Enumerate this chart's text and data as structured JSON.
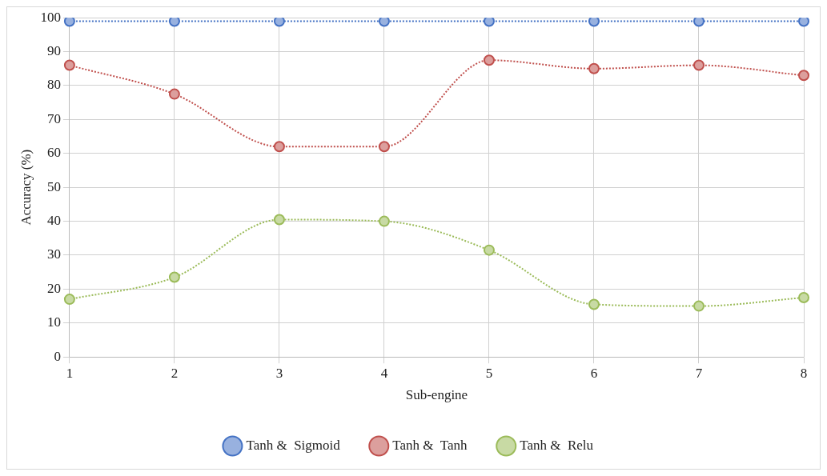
{
  "chart_data": {
    "type": "line",
    "xlabel": "Sub-engine",
    "ylabel": "Accuracy (%)",
    "categories": [
      "1",
      "2",
      "3",
      "4",
      "5",
      "6",
      "7",
      "8"
    ],
    "series": [
      {
        "name": "Tanh &  Sigmoid",
        "color": "#4472c4",
        "values": [
          99,
          99,
          99,
          99,
          99,
          99,
          99,
          99
        ]
      },
      {
        "name": "Tanh &  Tanh",
        "color": "#c0504d",
        "values": [
          86,
          77.5,
          62,
          62,
          87.5,
          85,
          86,
          83
        ]
      },
      {
        "name": "Tanh &  Relu",
        "color": "#9bbb59",
        "values": [
          17,
          23.5,
          40.5,
          40,
          31.5,
          15.5,
          15,
          17.5
        ]
      }
    ],
    "ylim": [
      0,
      100
    ],
    "yticks": [
      0,
      10,
      20,
      30,
      40,
      50,
      60,
      70,
      80,
      90,
      100
    ],
    "grid": true,
    "legend": "bottom",
    "marker": "circle",
    "line_style": "dotted"
  }
}
